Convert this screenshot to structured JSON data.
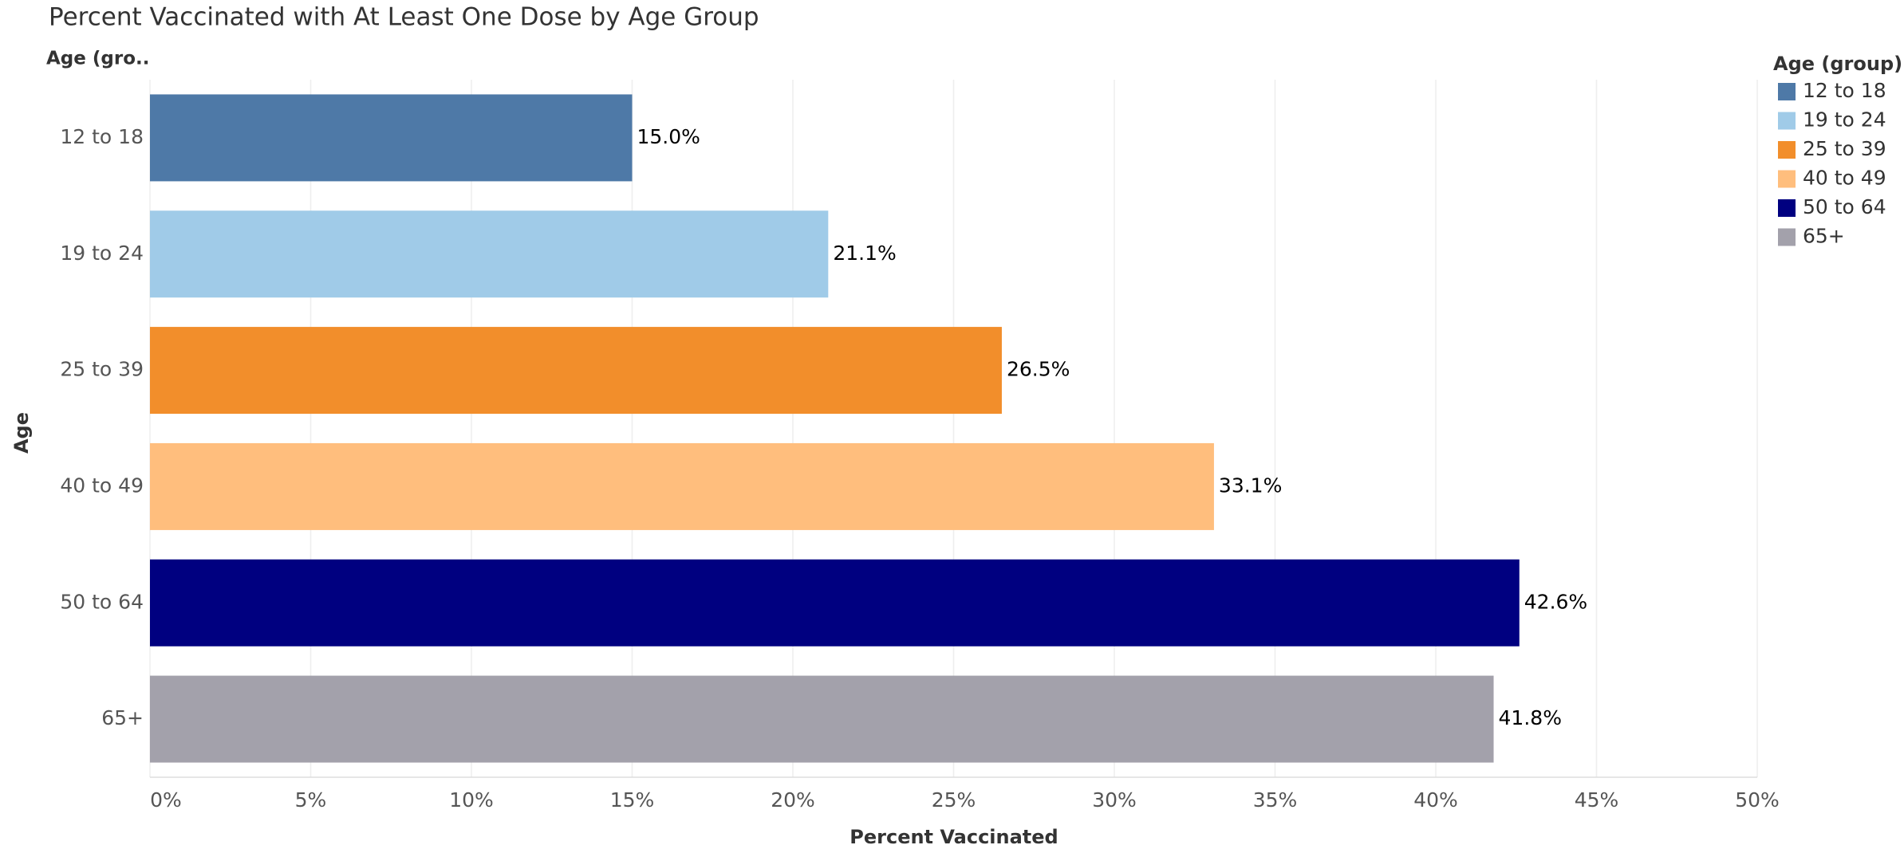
{
  "chart_data": {
    "type": "bar",
    "orientation": "horizontal",
    "title": "Percent Vaccinated with At Least One Dose by Age Group",
    "y_header": "Age (gro..",
    "ylabel": "Age",
    "xlabel": "Percent Vaccinated",
    "legend_title": "Age (group)",
    "legend": "top-right",
    "categories": [
      "12 to 18",
      "19 to 24",
      "25 to 39",
      "40 to 49",
      "50 to 64",
      "65+"
    ],
    "values": [
      15.0,
      21.1,
      26.5,
      33.1,
      42.6,
      41.8
    ],
    "value_labels": [
      "15.0%",
      "21.1%",
      "26.5%",
      "33.1%",
      "42.6%",
      "41.8%"
    ],
    "colors": [
      "#4e79a7",
      "#a0cbe8",
      "#f28e2b",
      "#ffbe7d",
      "#000080",
      "#a3a1ab"
    ],
    "xlim": [
      0,
      50
    ],
    "xticks": [
      {
        "value": 0,
        "label": "0%"
      },
      {
        "value": 5,
        "label": "5%"
      },
      {
        "value": 10,
        "label": "10%"
      },
      {
        "value": 15,
        "label": "15%"
      },
      {
        "value": 20,
        "label": "20%"
      },
      {
        "value": 25,
        "label": "25%"
      },
      {
        "value": 30,
        "label": "30%"
      },
      {
        "value": 35,
        "label": "35%"
      },
      {
        "value": 40,
        "label": "40%"
      },
      {
        "value": 45,
        "label": "45%"
      },
      {
        "value": 50,
        "label": "50%"
      }
    ],
    "grid": true
  }
}
